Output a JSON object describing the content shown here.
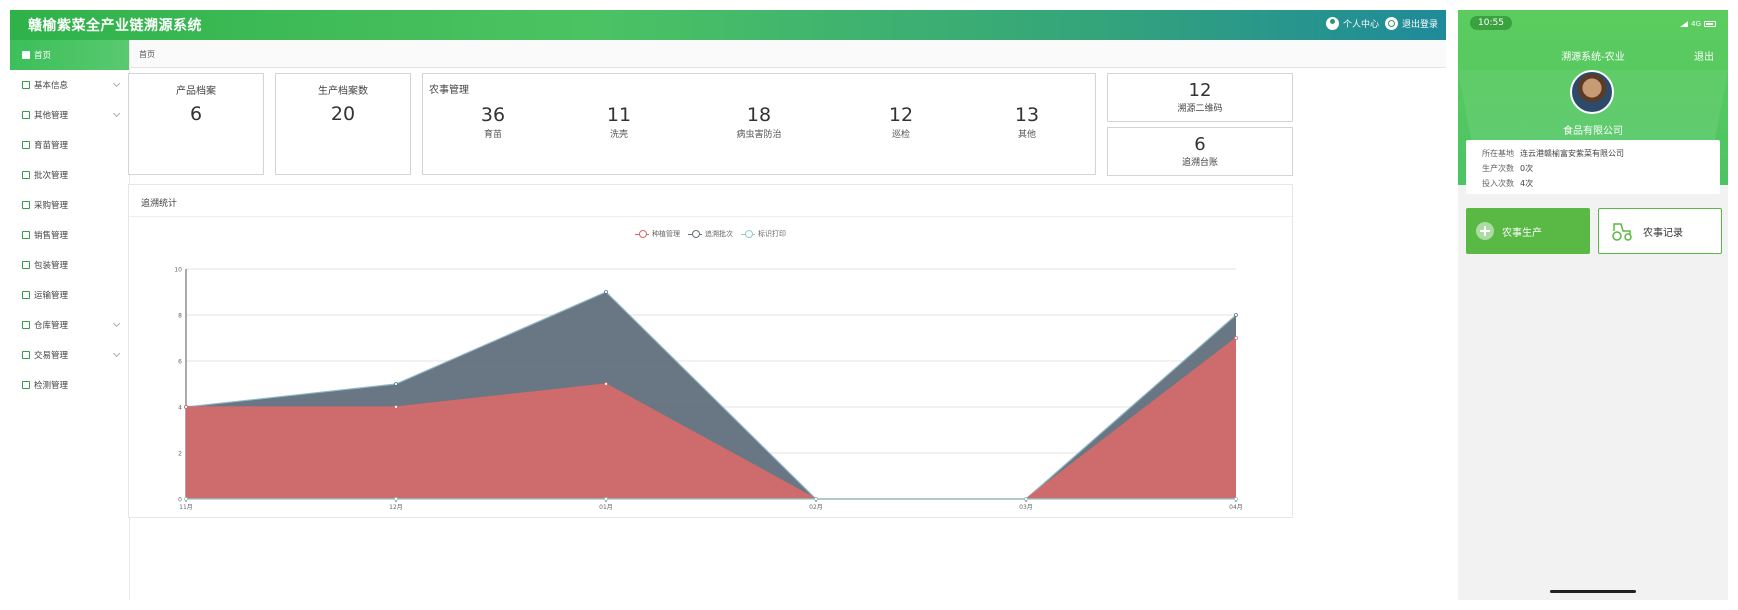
{
  "app": {
    "title": "赣榆紫菜全产业链溯源系统",
    "user_center": "个人中心",
    "logout": "退出登录"
  },
  "sidebar": {
    "items": [
      {
        "label": "首页",
        "icon": "home-icon",
        "active": true,
        "has_children": false
      },
      {
        "label": "基本信息",
        "icon": "info-icon",
        "active": false,
        "has_children": true
      },
      {
        "label": "其他管理",
        "icon": "grid-icon",
        "active": false,
        "has_children": true
      },
      {
        "label": "育苗管理",
        "icon": "layers-icon",
        "active": false,
        "has_children": false
      },
      {
        "label": "批次管理",
        "icon": "copy-icon",
        "active": false,
        "has_children": false
      },
      {
        "label": "采购管理",
        "icon": "cart-icon",
        "active": false,
        "has_children": false
      },
      {
        "label": "销售管理",
        "icon": "bar-chart-icon",
        "active": false,
        "has_children": false
      },
      {
        "label": "包装管理",
        "icon": "package-icon",
        "active": false,
        "has_children": false
      },
      {
        "label": "运输管理",
        "icon": "truck-icon",
        "active": false,
        "has_children": false
      },
      {
        "label": "仓库管理",
        "icon": "warehouse-icon",
        "active": false,
        "has_children": true
      },
      {
        "label": "交易管理",
        "icon": "cart-icon",
        "active": false,
        "has_children": true
      },
      {
        "label": "检测管理",
        "icon": "test-icon",
        "active": false,
        "has_children": false
      }
    ]
  },
  "breadcrumb": "首页",
  "stats": {
    "product_archive": {
      "label": "产品档案",
      "value": "6"
    },
    "production_archive": {
      "label": "生产档案数",
      "value": "20"
    },
    "farm": {
      "title": "农事管理",
      "items": [
        {
          "value": "36",
          "label": "育苗"
        },
        {
          "value": "11",
          "label": "洗壳"
        },
        {
          "value": "18",
          "label": "病虫害防治"
        },
        {
          "value": "12",
          "label": "巡检"
        },
        {
          "value": "13",
          "label": "其他"
        }
      ]
    },
    "qr_codes": {
      "value": "12",
      "label": "溯源二维码"
    },
    "ledger": {
      "value": "6",
      "label": "追溯台账"
    }
  },
  "chart_panel_title": "追溯统计",
  "chart_data": {
    "type": "area",
    "categories": [
      "11月",
      "12月",
      "01月",
      "02月",
      "03月",
      "04月"
    ],
    "series": [
      {
        "name": "种植管理",
        "values": [
          4,
          4,
          5,
          0,
          0,
          7
        ],
        "color": "#d46a6a"
      },
      {
        "name": "追溯批次",
        "values": [
          4,
          5,
          9,
          0,
          0,
          8
        ],
        "color": "#61707d"
      },
      {
        "name": "标识打印",
        "values": [
          0,
          0,
          0,
          0,
          0,
          0
        ],
        "color": "#8fcbc9"
      }
    ],
    "ylim": [
      0,
      10
    ],
    "yticks": [
      "0",
      "2",
      "4",
      "6",
      "8",
      "10"
    ],
    "legend_position": "top-center",
    "grid": true
  },
  "phone": {
    "time": "10:55",
    "network": "4G",
    "title": "溯源系统-农业",
    "logout": "退出",
    "company": "食品有限公司",
    "info": [
      {
        "key": "所在基地",
        "value": "连云港赣榆富安紫菜有限公司"
      },
      {
        "key": "生产次数",
        "value": "0次"
      },
      {
        "key": "投入次数",
        "value": "4次"
      }
    ],
    "btn_production": "农事生产",
    "btn_records": "农事记录"
  },
  "colors": {
    "brand_green": "#4cc362",
    "header_teal": "#1f8a9a",
    "phone_green": "#5ab845"
  }
}
